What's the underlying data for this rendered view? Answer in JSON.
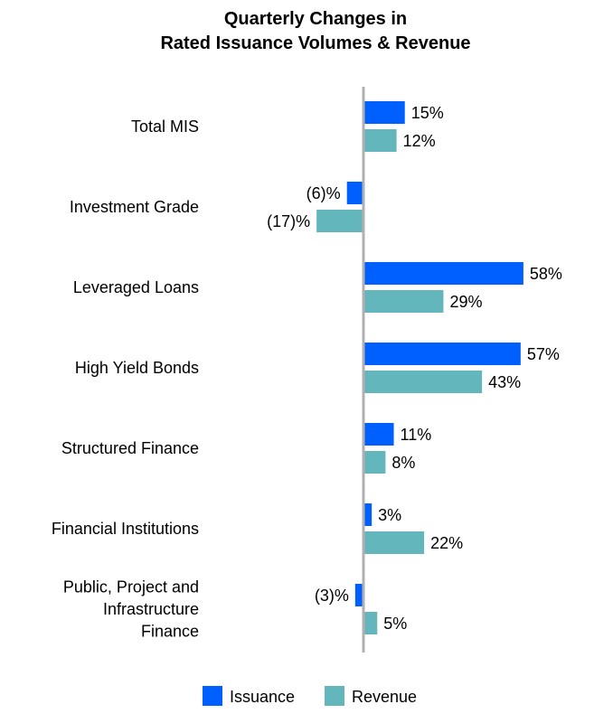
{
  "chart_data": {
    "type": "bar",
    "orientation": "horizontal",
    "title": [
      "Quarterly Changes in",
      "Rated Issuance Volumes & Revenue"
    ],
    "xlabel": "",
    "ylabel": "",
    "grid": false,
    "legend_position": "bottom",
    "categories": [
      [
        "Total MIS"
      ],
      [
        "Investment Grade"
      ],
      [
        "Leveraged Loans"
      ],
      [
        "High Yield Bonds"
      ],
      [
        "Structured Finance"
      ],
      [
        "Financial Institutions"
      ],
      [
        "Public, Project and",
        "Infrastructure",
        "Finance"
      ]
    ],
    "series": [
      {
        "name": "Issuance",
        "color": "#0060ff",
        "values": [
          15,
          -6,
          58,
          57,
          11,
          3,
          -3
        ],
        "labels": [
          "15%",
          "(6)%",
          "58%",
          "57%",
          "11%",
          "3%",
          "(3)%"
        ]
      },
      {
        "name": "Revenue",
        "color": "#62b6bc",
        "values": [
          12,
          -17,
          29,
          43,
          8,
          22,
          5
        ],
        "labels": [
          "12%",
          "(17)%",
          "29%",
          "43%",
          "8%",
          "22%",
          "5%"
        ]
      }
    ],
    "xlim": [
      -20,
      60
    ]
  }
}
